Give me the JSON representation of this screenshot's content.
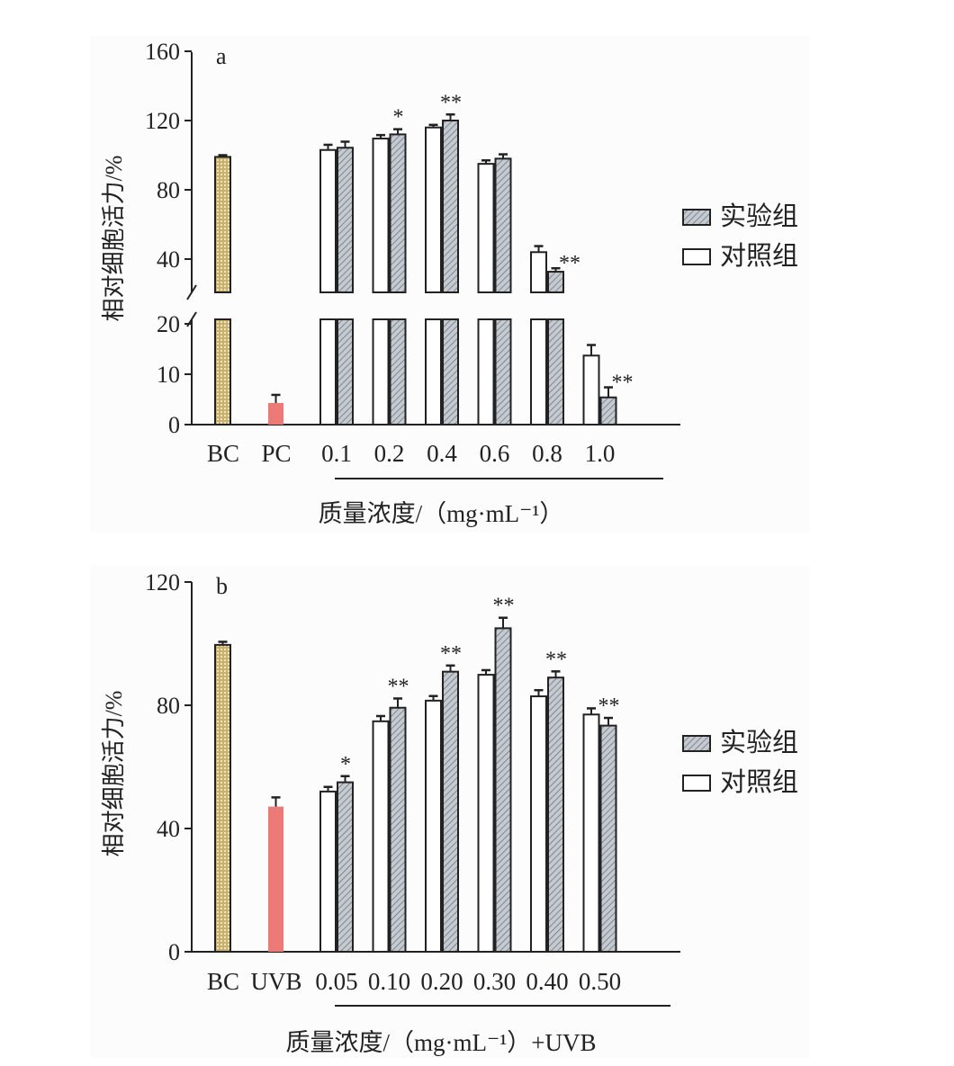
{
  "chart_data": [
    {
      "type": "bar",
      "panel_label": "a",
      "title": "",
      "ylabel": "相对细胞活力/%",
      "xlabel": "质量浓度/（mg·mL⁻¹）",
      "yticks": [
        0,
        10,
        20,
        40,
        80,
        120,
        160
      ],
      "ylim": [
        0,
        160
      ],
      "axis_break": [
        20,
        30
      ],
      "controls": [
        {
          "label": "BC",
          "value": 99,
          "error": 1,
          "style": "bc"
        },
        {
          "label": "PC",
          "value": 4.3,
          "error": 1.6,
          "style": "pc"
        }
      ],
      "categories": [
        "0.1",
        "0.2",
        "0.4",
        "0.6",
        "0.8",
        "1.0"
      ],
      "series": [
        {
          "name": "对照组",
          "values": [
            103,
            109.6,
            116,
            95,
            44,
            13.7
          ],
          "errors": [
            3,
            2,
            1.5,
            2,
            3.5,
            2.1
          ],
          "marks": [
            "",
            "",
            "",
            "",
            "",
            ""
          ]
        },
        {
          "name": "实验组",
          "values": [
            104.3,
            112,
            120,
            98,
            32.7,
            5.4
          ],
          "errors": [
            3.5,
            3,
            3.5,
            2.5,
            2,
            2
          ],
          "marks": [
            "",
            "*",
            "**",
            "",
            "**",
            "**"
          ]
        }
      ],
      "legend": {
        "position": "right",
        "entries": [
          "实验组",
          "对照组"
        ]
      },
      "grid": false
    },
    {
      "type": "bar",
      "panel_label": "b",
      "title": "",
      "ylabel": "相对细胞活力/%",
      "xlabel": "质量浓度/（mg·mL⁻¹）+UVB",
      "yticks": [
        0,
        40,
        80,
        120
      ],
      "ylim": [
        0,
        120
      ],
      "controls": [
        {
          "label": "BC",
          "value": 99.6,
          "error": 1,
          "style": "bc"
        },
        {
          "label": "UVB",
          "value": 47.1,
          "error": 3,
          "style": "pc"
        }
      ],
      "categories": [
        "0.05",
        "0.10",
        "0.20",
        "0.30",
        "0.40",
        "0.50"
      ],
      "series": [
        {
          "name": "对照组",
          "values": [
            52,
            74.8,
            81.5,
            89.9,
            82.9,
            77
          ],
          "errors": [
            1.5,
            1.7,
            1.5,
            1.5,
            2,
            2
          ],
          "marks": [
            "",
            "",
            "",
            "",
            "",
            ""
          ]
        },
        {
          "name": "实验组",
          "values": [
            55,
            79.2,
            90.9,
            105,
            89,
            73.4
          ],
          "errors": [
            2,
            3,
            2,
            3.4,
            2,
            2.5
          ],
          "marks": [
            "*",
            "**",
            "**",
            "**",
            "**",
            "**"
          ]
        }
      ],
      "legend": {
        "position": "right",
        "entries": [
          "实验组",
          "对照组"
        ]
      },
      "grid": false
    }
  ],
  "colors": {
    "bc": "#c8b06a",
    "pc": "#ee7a78",
    "exp": "#b4bcc4",
    "ctrl": "#ffffff",
    "axis": "#222222"
  }
}
